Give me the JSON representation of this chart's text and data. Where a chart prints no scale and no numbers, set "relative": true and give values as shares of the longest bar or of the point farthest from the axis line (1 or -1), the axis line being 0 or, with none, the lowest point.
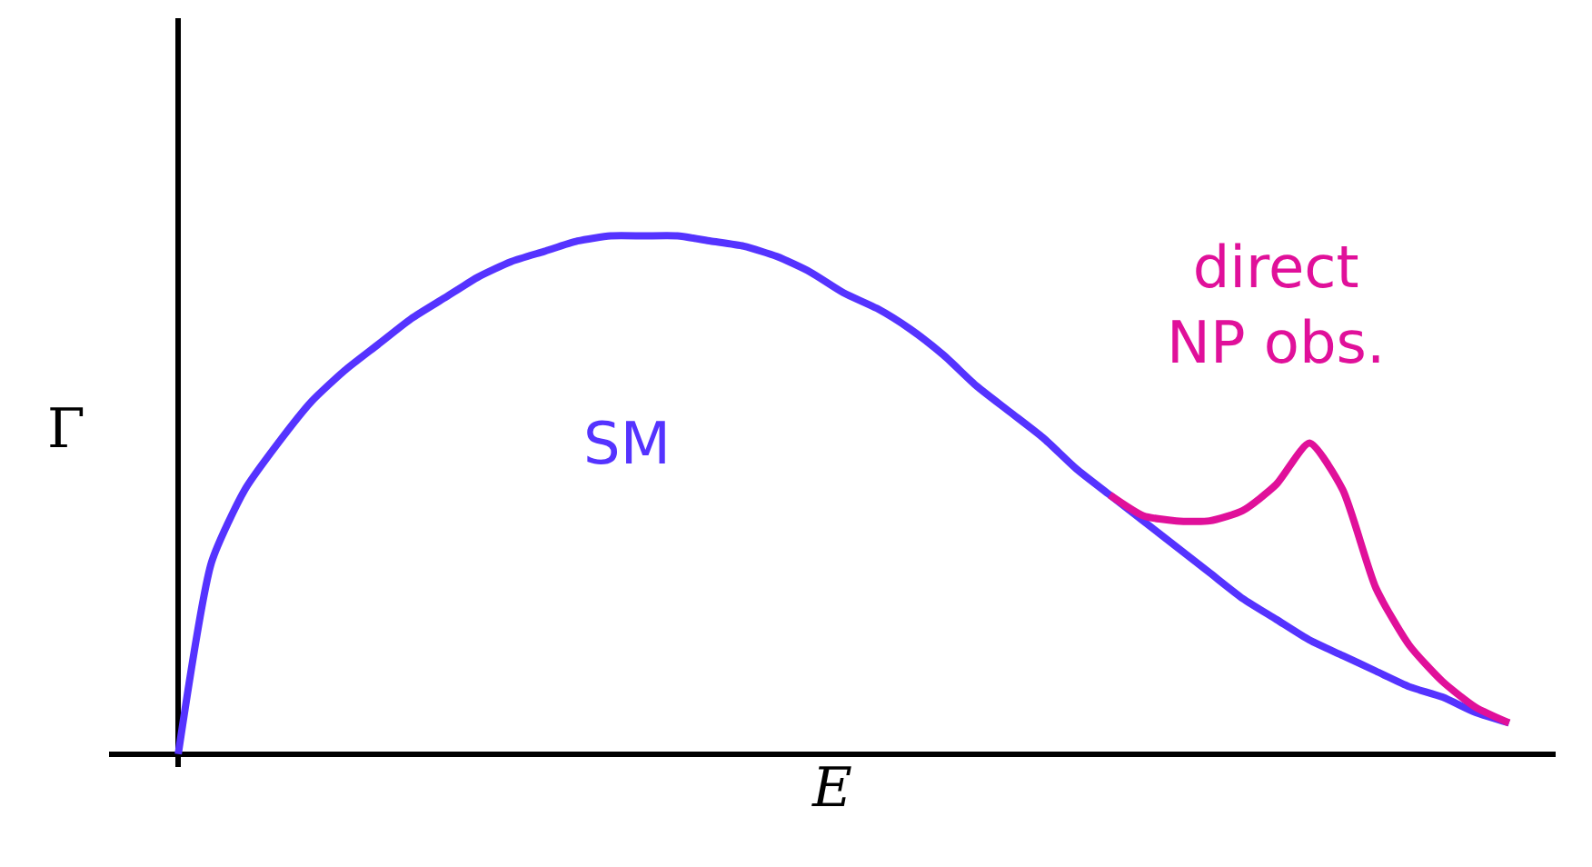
{
  "chart_data": {
    "type": "line",
    "relative": true,
    "xlabel": "E",
    "ylabel": "Γ",
    "tick_labels": false,
    "legend": false,
    "marker": "none",
    "line_style": "solid",
    "categories": [
      null,
      null,
      null,
      null,
      null,
      null,
      null,
      null,
      null,
      null,
      null,
      null,
      null,
      null,
      null,
      null,
      null,
      null,
      null,
      null,
      null,
      null,
      null,
      null,
      null,
      null,
      null,
      null,
      null,
      null,
      null,
      null,
      null,
      null,
      null,
      null,
      null,
      null,
      null,
      null,
      null
    ],
    "series": [
      {
        "name": "SM",
        "color": "#5533ff",
        "values": [
          0,
          0.37,
          0.51,
          0.6,
          0.68,
          0.74,
          0.79,
          0.84,
          0.88,
          0.92,
          0.95,
          0.97,
          0.99,
          1.0,
          1.0,
          1.0,
          0.99,
          0.98,
          0.96,
          0.93,
          0.89,
          0.86,
          0.82,
          0.77,
          0.71,
          0.66,
          0.61,
          0.55,
          0.5,
          0.45,
          0.4,
          0.35,
          0.3,
          0.26,
          0.22,
          0.19,
          0.16,
          0.13,
          0.11,
          0.08,
          0.06
        ]
      },
      {
        "name": "direct\nNP obs.",
        "color": "#e0109a",
        "values": [
          null,
          null,
          null,
          null,
          null,
          null,
          null,
          null,
          null,
          null,
          null,
          null,
          null,
          null,
          null,
          null,
          null,
          null,
          null,
          null,
          null,
          null,
          null,
          null,
          null,
          null,
          null,
          null,
          0.5,
          0.46,
          0.45,
          0.45,
          0.47,
          0.52,
          0.6,
          0.51,
          0.32,
          0.21,
          0.14,
          0.09,
          0.06
        ]
      }
    ]
  }
}
